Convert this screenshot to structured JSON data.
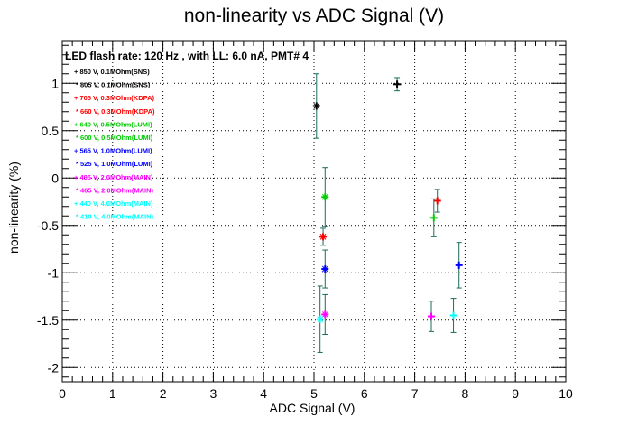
{
  "chart_data": {
    "type": "scatter",
    "title": "non-linearity vs ADC Signal (V)",
    "xlabel": "ADC Signal (V)",
    "ylabel": "non-linearity (%)",
    "xlim": [
      0,
      10
    ],
    "ylim": [
      -2.15,
      1.45
    ],
    "x_ticks": [
      "0",
      "1",
      "2",
      "3",
      "4",
      "5",
      "6",
      "7",
      "8",
      "9",
      "10"
    ],
    "y_ticks": [
      "1",
      "0.5",
      "0",
      "-0.5",
      "-1",
      "-1.5",
      "-2"
    ],
    "grid": true,
    "legend_position": "top-left",
    "annotation": "LED flash rate: 120 Hz , with LL: 6.0 nA, PMT# 4",
    "series": [
      {
        "name": "850 V, 0.1MOhm(SNS)",
        "color": "#000000",
        "marker": "plus",
        "points": [
          {
            "x": 6.65,
            "y": 0.99,
            "yerr": 0.07,
            "xerr": 0.08
          }
        ]
      },
      {
        "name": "805 V, 0.1MOhm(SNS)",
        "color": "#000000",
        "marker": "star",
        "points": [
          {
            "x": 5.05,
            "y": 0.76,
            "yerr": 0.34,
            "xerr": 0.02
          }
        ]
      },
      {
        "name": "705 V, 0.3MOhm(KDPA)",
        "color": "#ff0000",
        "marker": "plus",
        "points": [
          {
            "x": 7.45,
            "y": -0.24,
            "yerr": 0.12,
            "xerr": 0.05
          }
        ]
      },
      {
        "name": "660 V, 0.3MOhm(KDPA)",
        "color": "#ff0000",
        "marker": "star",
        "points": [
          {
            "x": 5.18,
            "y": -0.62,
            "yerr": 0.09,
            "xerr": 0.02
          }
        ]
      },
      {
        "name": "640 V, 0.5MOhm(LUMI)",
        "color": "#00cc00",
        "marker": "plus",
        "points": [
          {
            "x": 7.38,
            "y": -0.42,
            "yerr": 0.2,
            "xerr": 0.06
          }
        ]
      },
      {
        "name": "600 V, 0.5MOhm(LUMI)",
        "color": "#00cc00",
        "marker": "star",
        "points": [
          {
            "x": 5.22,
            "y": -0.2,
            "yerr": 0.31,
            "xerr": 0.02
          }
        ]
      },
      {
        "name": "565 V, 1.0MOhm(LUMI)",
        "color": "#0000ff",
        "marker": "plus",
        "points": [
          {
            "x": 7.88,
            "y": -0.92,
            "yerr": 0.24,
            "xerr": 0.06
          }
        ]
      },
      {
        "name": "525 V, 1.0MOhm(LUMI)",
        "color": "#0000ff",
        "marker": "star",
        "points": [
          {
            "x": 5.22,
            "y": -0.96,
            "yerr": 0.2,
            "xerr": 0.02
          }
        ]
      },
      {
        "name": "495 V, 2.0MOhm(MAIN)",
        "color": "#ff00ff",
        "marker": "plus",
        "points": [
          {
            "x": 7.33,
            "y": -1.46,
            "yerr": 0.16,
            "xerr": 0.06
          }
        ]
      },
      {
        "name": "465 V, 2.0MOhm(MAIN)",
        "color": "#ff00ff",
        "marker": "star",
        "points": [
          {
            "x": 5.22,
            "y": -1.44,
            "yerr": 0.21,
            "xerr": 0.02
          }
        ]
      },
      {
        "name": "440 V, 4.0MOhm(MAIN)",
        "color": "#00ffff",
        "marker": "plus",
        "points": [
          {
            "x": 7.77,
            "y": -1.45,
            "yerr": 0.18,
            "xerr": 0.06
          }
        ]
      },
      {
        "name": "410 V, 4.0MOhm(MAIN)",
        "color": "#00ffff",
        "marker": "star",
        "points": [
          {
            "x": 5.12,
            "y": -1.49,
            "yerr": 0.35,
            "xerr": 0.02
          }
        ]
      }
    ],
    "error_bar_color": "#1a6b5a"
  }
}
